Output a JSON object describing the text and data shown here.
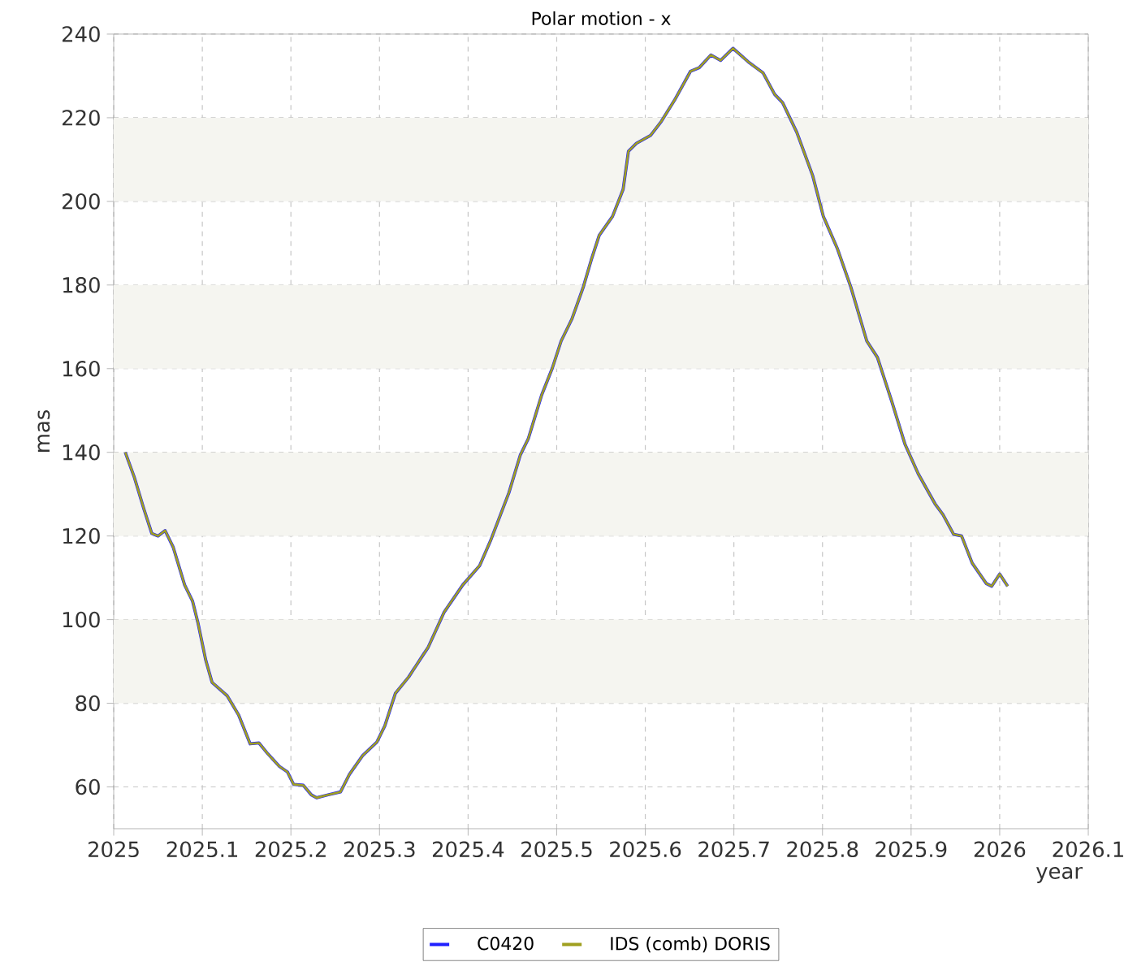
{
  "chart_data": {
    "type": "line",
    "title": "Polar motion - x",
    "xlabel": "year",
    "ylabel": "mas",
    "xlim": [
      2025,
      2026.1
    ],
    "xticks": [
      2025,
      2025.1,
      2025.2,
      2025.3,
      2025.4,
      2025.5,
      2025.6,
      2025.7,
      2025.8,
      2025.9,
      2026,
      2026.1
    ],
    "ylim": [
      50,
      240
    ],
    "yticks": [
      60,
      80,
      100,
      120,
      140,
      160,
      180,
      200,
      220,
      240
    ],
    "grid": true,
    "legend": "bottom",
    "line_style": "solid",
    "bands": [
      {
        "axis": "y",
        "from": 80,
        "to": 100,
        "color": "#f5f5f0"
      },
      {
        "axis": "y",
        "from": 120,
        "to": 140,
        "color": "#f5f5f0"
      },
      {
        "axis": "y",
        "from": 160,
        "to": 180,
        "color": "#f5f5f0"
      },
      {
        "axis": "y",
        "from": 200,
        "to": 220,
        "color": "#f5f5f0"
      }
    ],
    "x": [
      2025.013,
      2025.023,
      2025.034,
      2025.043,
      2025.05,
      2025.058,
      2025.067,
      2025.08,
      2025.089,
      2025.095,
      2025.104,
      2025.111,
      2025.128,
      2025.141,
      2025.154,
      2025.164,
      2025.174,
      2025.187,
      2025.196,
      2025.203,
      2025.214,
      2025.223,
      2025.229,
      2025.242,
      2025.256,
      2025.266,
      2025.281,
      2025.297,
      2025.306,
      2025.318,
      2025.333,
      2025.349,
      2025.355,
      2025.373,
      2025.394,
      2025.413,
      2025.425,
      2025.446,
      2025.459,
      2025.468,
      2025.483,
      2025.495,
      2025.505,
      2025.517,
      2025.53,
      2025.539,
      2025.548,
      2025.563,
      2025.575,
      2025.581,
      2025.59,
      2025.606,
      2025.618,
      2025.633,
      2025.651,
      2025.661,
      2025.674,
      2025.685,
      2025.699,
      2025.716,
      2025.733,
      2025.746,
      2025.755,
      2025.771,
      2025.789,
      2025.801,
      2025.817,
      2025.832,
      2025.85,
      2025.862,
      2025.878,
      2025.893,
      2025.908,
      2025.927,
      2025.936,
      2025.948,
      2025.957,
      2025.969,
      2025.985,
      2025.991,
      2026.0,
      2026.009
    ],
    "series": [
      {
        "name": "C0420",
        "color": "#2020ff",
        "values": [
          140,
          134.2,
          126.5,
          120.6,
          120,
          121.3,
          117.4,
          108.3,
          104.4,
          99.3,
          90.2,
          85,
          81.8,
          77.2,
          70.3,
          70.5,
          67.9,
          64.9,
          63.6,
          60.6,
          60.4,
          58.1,
          57.4,
          58.1,
          58.8,
          63,
          67.5,
          70.7,
          74.6,
          82.4,
          86.3,
          91.5,
          93.4,
          101.8,
          108.3,
          112.9,
          118.7,
          130.3,
          139.4,
          143.3,
          153.7,
          160.1,
          166.6,
          171.8,
          179.5,
          186,
          191.9,
          196.4,
          202.9,
          212,
          213.9,
          215.8,
          219.1,
          224.2,
          231.1,
          232,
          235,
          233.7,
          236.6,
          233.4,
          230.7,
          225.6,
          223.6,
          216.5,
          206.1,
          196.4,
          188.6,
          179.5,
          166.6,
          162.7,
          152.3,
          142,
          134.9,
          127.7,
          125.1,
          120.4,
          120,
          113.5,
          108.6,
          108,
          110.9,
          108
        ]
      },
      {
        "name": "IDS (comb) DORIS",
        "color": "#a0a020",
        "values": [
          140,
          134.2,
          126.5,
          120.6,
          120,
          121.3,
          117.4,
          108.3,
          104.4,
          99.3,
          90.2,
          85,
          81.8,
          77.2,
          70.3,
          70.5,
          67.9,
          64.9,
          63.6,
          60.6,
          60.4,
          58.1,
          57.4,
          58.1,
          58.8,
          63,
          67.5,
          70.7,
          74.6,
          82.4,
          86.3,
          91.5,
          93.4,
          101.8,
          108.3,
          112.9,
          118.7,
          130.3,
          139.4,
          143.3,
          153.7,
          160.1,
          166.6,
          171.8,
          179.5,
          186,
          191.9,
          196.4,
          202.9,
          212,
          213.9,
          215.8,
          219.1,
          224.2,
          231.1,
          232,
          235,
          233.7,
          236.6,
          233.4,
          230.7,
          225.6,
          223.6,
          216.5,
          206.1,
          196.4,
          188.6,
          179.5,
          166.6,
          162.7,
          152.3,
          142,
          134.9,
          127.7,
          125.1,
          120.4,
          120,
          113.5,
          108.6,
          108,
          110.9,
          108
        ]
      }
    ]
  }
}
